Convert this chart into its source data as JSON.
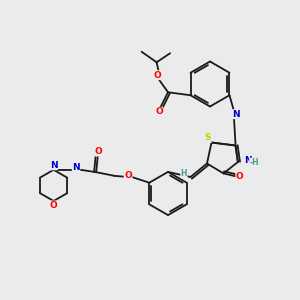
{
  "bg_color": "#ebebeb",
  "bond_color": "#1a1a1a",
  "atom_colors": {
    "O": "#ff0000",
    "N": "#0000cc",
    "S": "#cccc00",
    "H_atom": "#4d9999",
    "C": "#1a1a1a"
  },
  "figsize": [
    3.0,
    3.0
  ],
  "dpi": 100
}
